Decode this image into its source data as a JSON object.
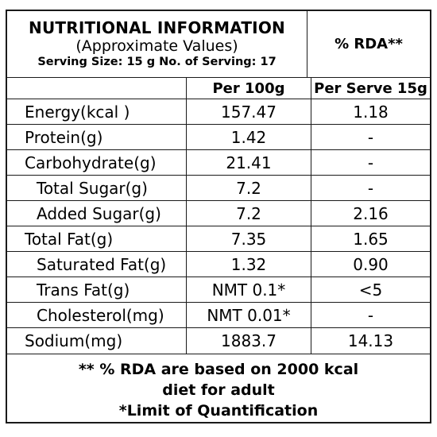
{
  "header": {
    "title": "NUTRITIONAL INFORMATION",
    "subtitle": "(Approximate Values)",
    "serving_size": "Serving Size:  15 g   No. of Serving: 17",
    "rda_column": "% RDA**"
  },
  "columns": {
    "per100": "Per 100g",
    "perserve": "Per Serve 15g"
  },
  "rows": [
    {
      "name": "Energy(kcal )",
      "per100": "157.47",
      "perserve": "1.18"
    },
    {
      "name": "Protein(g)",
      "per100": "1.42",
      "perserve": "-"
    },
    {
      "name": "Carbohydrate(g)",
      "per100": "21.41",
      "perserve": "-"
    },
    {
      "name": "Total Sugar(g)",
      "per100": "7.2",
      "perserve": "-"
    },
    {
      "name": "Added Sugar(g)",
      "per100": "7.2",
      "perserve": "2.16"
    },
    {
      "name": "Total Fat(g)",
      "per100": "7.35",
      "perserve": "1.65"
    },
    {
      "name": "Saturated Fat(g)",
      "per100": "1.32",
      "perserve": "0.90"
    },
    {
      "name": "Trans Fat(g)",
      "per100": "NMT 0.1*",
      "perserve": "<5"
    },
    {
      "name": "Cholesterol(mg)",
      "per100": "NMT 0.01*",
      "perserve": "-"
    },
    {
      "name": "Sodium(mg)",
      "per100": "1883.7",
      "perserve": "14.13"
    }
  ],
  "footer": {
    "line1": "** % RDA are based on 2000 kcal",
    "line2": "diet for adult",
    "line3": "*Limit of Quantification"
  }
}
